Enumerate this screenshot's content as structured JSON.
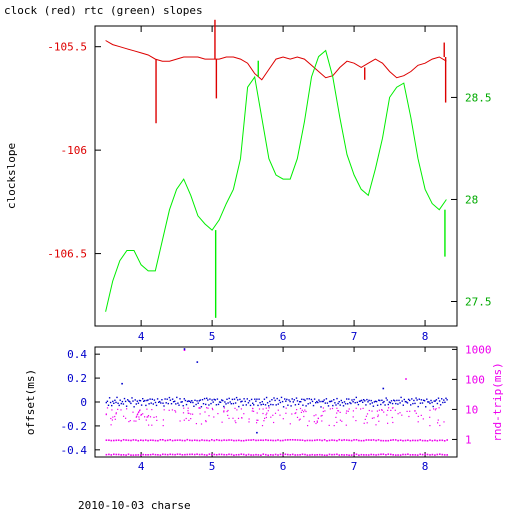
{
  "chart_data": [
    {
      "type": "line",
      "title": "clock (red) rtc (green) slopes",
      "ylabel": "clockslope",
      "xlim": [
        3.35,
        8.45
      ],
      "ylim": [
        -106.85,
        -105.4
      ],
      "y2lim": [
        27.38,
        28.85
      ],
      "x_ticks": [
        4,
        5,
        6,
        7,
        8
      ],
      "y_ticks": [
        -105.5,
        -106,
        -106.5
      ],
      "y_tick_labels": [
        "-105.5",
        "-106",
        "-106.5"
      ],
      "y2_ticks": [
        28.5,
        28,
        27.5
      ],
      "y2_tick_labels": [
        "28.5",
        "28",
        "27.5"
      ],
      "series": [
        {
          "color": "#dd0000",
          "axis": "left",
          "x": [
            3.5,
            3.6,
            3.7,
            3.8,
            3.9,
            4.0,
            4.1,
            4.2,
            4.3,
            4.4,
            4.5,
            4.6,
            4.7,
            4.8,
            4.9,
            5.0,
            5.1,
            5.2,
            5.3,
            5.4,
            5.5,
            5.6,
            5.7,
            5.8,
            5.9,
            6.0,
            6.1,
            6.2,
            6.3,
            6.4,
            6.5,
            6.6,
            6.7,
            6.8,
            6.9,
            7.0,
            7.1,
            7.2,
            7.3,
            7.4,
            7.5,
            7.6,
            7.7,
            7.8,
            7.9,
            8.0,
            8.1,
            8.2,
            8.3
          ],
          "y": [
            -105.47,
            -105.49,
            -105.5,
            -105.51,
            -105.52,
            -105.53,
            -105.54,
            -105.56,
            -105.57,
            -105.57,
            -105.56,
            -105.55,
            -105.55,
            -105.55,
            -105.56,
            -105.56,
            -105.56,
            -105.55,
            -105.55,
            -105.56,
            -105.58,
            -105.63,
            -105.66,
            -105.61,
            -105.56,
            -105.55,
            -105.56,
            -105.55,
            -105.56,
            -105.59,
            -105.62,
            -105.65,
            -105.64,
            -105.6,
            -105.57,
            -105.58,
            -105.6,
            -105.58,
            -105.56,
            -105.58,
            -105.62,
            -105.65,
            -105.64,
            -105.62,
            -105.59,
            -105.58,
            -105.56,
            -105.55,
            -105.57
          ],
          "spikes": [
            {
              "x": 4.21,
              "y": -105.87
            },
            {
              "x": 5.04,
              "y": -105.37
            },
            {
              "x": 5.06,
              "y": -105.75
            },
            {
              "x": 7.15,
              "y": -105.66
            },
            {
              "x": 8.27,
              "y": -105.48
            },
            {
              "x": 8.29,
              "y": -105.77
            }
          ]
        },
        {
          "color": "#00ee00",
          "axis": "right",
          "x": [
            3.5,
            3.6,
            3.7,
            3.8,
            3.9,
            4.0,
            4.1,
            4.2,
            4.3,
            4.4,
            4.5,
            4.6,
            4.7,
            4.8,
            4.9,
            5.0,
            5.1,
            5.2,
            5.3,
            5.4,
            5.5,
            5.6,
            5.7,
            5.8,
            5.9,
            6.0,
            6.1,
            6.2,
            6.3,
            6.4,
            6.5,
            6.6,
            6.7,
            6.8,
            6.9,
            7.0,
            7.1,
            7.2,
            7.3,
            7.4,
            7.5,
            7.6,
            7.7,
            7.8,
            7.9,
            8.0,
            8.1,
            8.2,
            8.3
          ],
          "y": [
            27.45,
            27.6,
            27.7,
            27.75,
            27.75,
            27.68,
            27.65,
            27.65,
            27.8,
            27.95,
            28.05,
            28.1,
            28.02,
            27.92,
            27.88,
            27.85,
            27.9,
            27.98,
            28.05,
            28.2,
            28.55,
            28.6,
            28.4,
            28.2,
            28.12,
            28.1,
            28.1,
            28.2,
            28.38,
            28.6,
            28.7,
            28.73,
            28.6,
            28.4,
            28.22,
            28.12,
            28.05,
            28.02,
            28.15,
            28.3,
            28.5,
            28.55,
            28.57,
            28.4,
            28.2,
            28.05,
            27.98,
            27.95,
            28.0
          ],
          "spikes": [
            {
              "x": 4.21,
              "y": 27.65
            },
            {
              "x": 5.05,
              "y": 27.42
            },
            {
              "x": 5.65,
              "y": 28.68
            },
            {
              "x": 8.28,
              "y": 27.72
            }
          ]
        }
      ]
    },
    {
      "type": "scatter",
      "ylabel": "offset(ms)",
      "y2label": "rnd-trip(ms)",
      "xlabel": "2010-10-03 charse",
      "xlim": [
        3.35,
        8.45
      ],
      "ylim": [
        -0.46,
        0.46
      ],
      "y2_log": true,
      "y2lim": [
        0.26,
        1200
      ],
      "x_ticks": [
        4,
        5,
        6,
        7,
        8
      ],
      "y_ticks": [
        0.4,
        0.2,
        0,
        -0.2,
        -0.4
      ],
      "y_tick_labels": [
        "0.4",
        "0.2",
        "0",
        "-0.2",
        "-0.4"
      ],
      "y2_ticks": [
        1000,
        100,
        10,
        1
      ],
      "y2_tick_labels": [
        "1000",
        "100",
        "10",
        "1"
      ],
      "series": [
        {
          "color": "#0000cc",
          "axis": "left",
          "description_band_center": 0.0,
          "band_values": [
            0.0,
            0.02,
            -0.01,
            0.03,
            0.01,
            -0.02,
            0.02
          ],
          "outliers": [
            {
              "x": 4.6,
              "y": 0.45
            },
            {
              "x": 4.78,
              "y": 0.34
            },
            {
              "x": 3.72,
              "y": 0.16
            },
            {
              "x": 7.4,
              "y": 0.12
            },
            {
              "x": 5.62,
              "y": -0.25
            }
          ]
        },
        {
          "color": "#ee00ee",
          "axis": "right",
          "bands": [
            1.0,
            0.33
          ],
          "scatter_range": [
            3,
            12
          ],
          "outliers": [
            {
              "x": 4.6,
              "y": 1000
            },
            {
              "x": 7.72,
              "y": 110
            }
          ]
        }
      ]
    }
  ]
}
